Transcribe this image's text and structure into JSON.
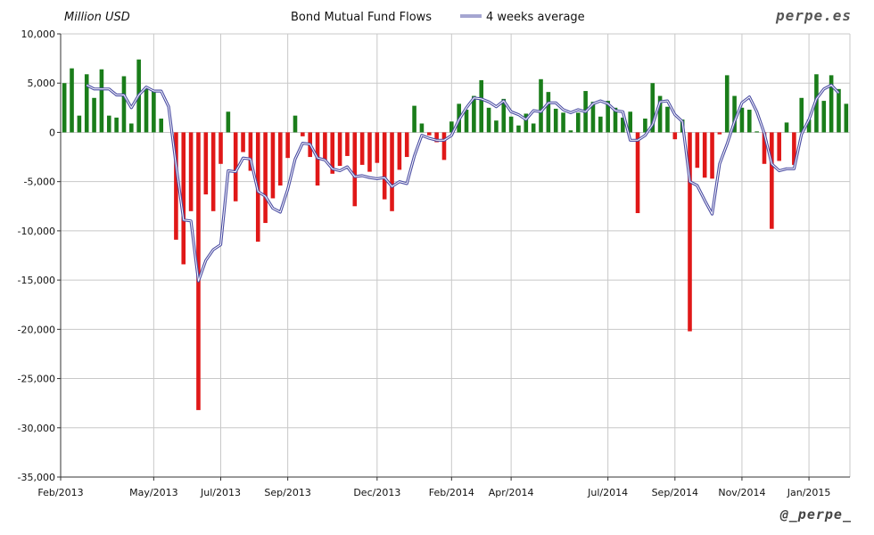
{
  "header": {
    "unit_label": "Million USD",
    "brand": "perpe.es",
    "handle": "@_perpe_"
  },
  "colors": {
    "positive": "#1a7d1a",
    "negative": "#e01818",
    "average_line": "#4b4da3",
    "grid": "#c8c8c8"
  },
  "chart_data": {
    "type": "bar",
    "title": "Bond Mutual Fund Flows",
    "ylabel": "Million USD",
    "ylim": [
      -35000,
      10000
    ],
    "yticks": [
      10000,
      5000,
      0,
      -5000,
      -10000,
      -15000,
      -20000,
      -25000,
      -30000,
      -35000
    ],
    "ytick_labels": [
      "10,000",
      "5,000",
      "0",
      "-5,000",
      "-10,000",
      "-15,000",
      "-20,000",
      "-25,000",
      "-30,000",
      "-35,000"
    ],
    "xtick_labels": [
      {
        "label": "Feb/2013",
        "week": 0
      },
      {
        "label": "May/2013",
        "week": 12.5
      },
      {
        "label": "Jul/2013",
        "week": 21.5
      },
      {
        "label": "Sep/2013",
        "week": 30.5
      },
      {
        "label": "Dec/2013",
        "week": 42.5
      },
      {
        "label": "Feb/2014",
        "week": 52.5
      },
      {
        "label": "Apr/2014",
        "week": 60.5
      },
      {
        "label": "Jul/2014",
        "week": 73.5
      },
      {
        "label": "Sep/2014",
        "week": 82.5
      },
      {
        "label": "Nov/2014",
        "week": 91.5
      },
      {
        "label": "Jan/2015",
        "week": 100.5
      }
    ],
    "grid": true,
    "legend_position": "top",
    "series": [
      {
        "name": "Bond Mutual Fund Flows",
        "kind": "bar",
        "values": [
          5000,
          6500,
          1700,
          5900,
          3500,
          6400,
          1700,
          1500,
          5700,
          900,
          7400,
          4600,
          4200,
          1400,
          0,
          -10900,
          -13400,
          -8000,
          -28200,
          -6300,
          -8000,
          -3200,
          2100,
          -7000,
          -2000,
          -3900,
          -11100,
          -9200,
          -6700,
          -5400,
          -2600,
          1700,
          -400,
          -2500,
          -5400,
          -2900,
          -4200,
          -3400,
          -2400,
          -7500,
          -3300,
          -4000,
          -3100,
          -6800,
          -8000,
          -3800,
          -2500,
          2700,
          900,
          -300,
          -1000,
          -2800,
          1100,
          2900,
          2300,
          3700,
          5300,
          2500,
          1200,
          3400,
          1600,
          700,
          1900,
          900,
          5400,
          4100,
          2400,
          2000,
          200,
          2000,
          4200,
          3100,
          1600,
          3200,
          2500,
          1500,
          2100,
          -8200,
          1400,
          5000,
          3700,
          2600,
          -700,
          1300,
          -20200,
          -3600,
          -4600,
          -4700,
          -200,
          5800,
          3700,
          2500,
          2300,
          100,
          -3200,
          -9800,
          -2900,
          1000,
          -3300,
          3500,
          1300,
          5900,
          3200,
          5800,
          4400,
          2900
        ]
      },
      {
        "name": "4 weeks average",
        "kind": "line",
        "values": [
          null,
          null,
          null,
          4800,
          4400,
          4400,
          4400,
          3800,
          3800,
          2500,
          3800,
          4600,
          4200,
          4200,
          2600,
          -3300,
          -8900,
          -9000,
          -15100,
          -13000,
          -11900,
          -11400,
          -3900,
          -4000,
          -2600,
          -2700,
          -6000,
          -6500,
          -7700,
          -8100,
          -5800,
          -2700,
          -1100,
          -1200,
          -2600,
          -2800,
          -3700,
          -3900,
          -3500,
          -4500,
          -4400,
          -4600,
          -4700,
          -4600,
          -5500,
          -5000,
          -5200,
          -2400,
          -300,
          -600,
          -800,
          -800,
          -300,
          1300,
          2500,
          3500,
          3400,
          3100,
          2600,
          3200,
          2100,
          1800,
          1300,
          2200,
          2100,
          3000,
          3000,
          2300,
          2000,
          2300,
          2100,
          2900,
          3200,
          2900,
          2200,
          2100,
          -800,
          -800,
          -300,
          800,
          3100,
          3200,
          1800,
          1100,
          -5000,
          -5400,
          -6900,
          -8300,
          -3200,
          -1200,
          1100,
          3000,
          3600,
          2100,
          -100,
          -3200,
          -3900,
          -3700,
          -3700,
          -200,
          1300,
          3400,
          4400,
          4800,
          4000
        ]
      }
    ]
  }
}
